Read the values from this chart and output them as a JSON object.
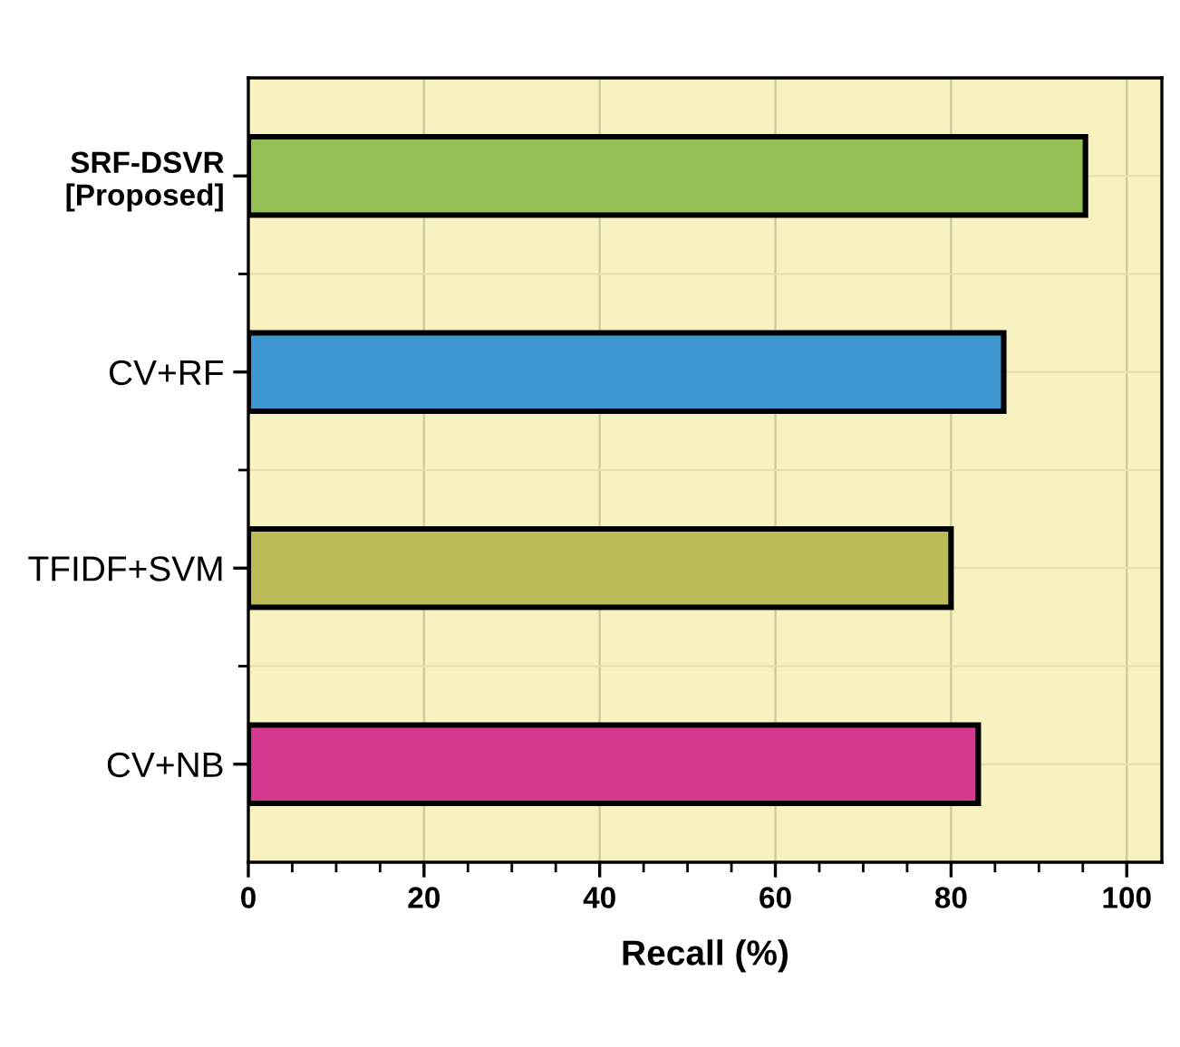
{
  "chart_data": {
    "type": "bar",
    "orientation": "horizontal",
    "xlabel": "Recall (%)",
    "categories": [
      "SRF-DSVR\n[Proposed]",
      "CV+RF",
      "TFIDF+SVM",
      "CV+NB"
    ],
    "values": [
      95.3,
      86.0,
      80.0,
      83.1
    ],
    "colors": [
      "#93c055",
      "#3e97d1",
      "#bcbb59",
      "#d4398f"
    ],
    "xlim": [
      0,
      104
    ],
    "xticks": [
      0,
      20,
      40,
      60,
      80,
      100
    ],
    "grid": true
  }
}
